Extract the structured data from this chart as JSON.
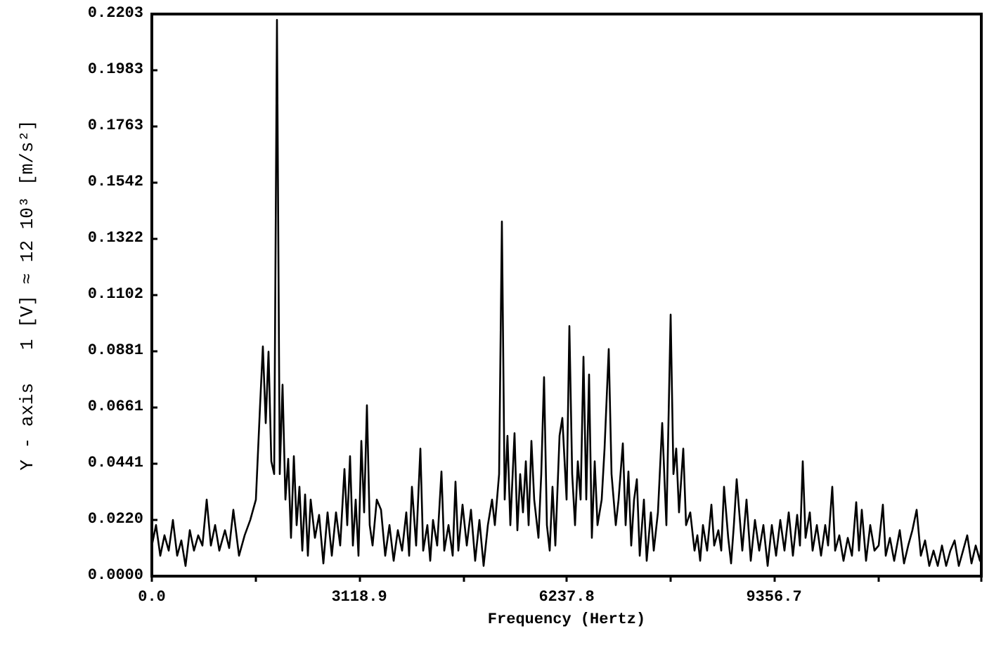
{
  "chart_data": {
    "type": "line",
    "xlabel": "Frequency (Hertz)",
    "ylabel": "Y - axis   1 [V] ≈ 12 10³ [m/s²]",
    "xlim": [
      0,
      12475.6
    ],
    "xticks": [
      {
        "value": 0,
        "label": "0.0"
      },
      {
        "value": 1559.45,
        "label": null
      },
      3118.9,
      {
        "value": 4678.35,
        "label": null
      },
      6237.8,
      {
        "value": 7797.25,
        "label": null
      },
      9356.7,
      {
        "value": 10916.15,
        "label": null
      },
      {
        "value": 12475.6,
        "label": null
      }
    ],
    "ylim": [
      0,
      0.2203
    ],
    "yticks": [
      {
        "value": 0,
        "label": "0.0000"
      },
      {
        "value": 0.022,
        "label": "0.0220"
      },
      0.0441,
      0.0661,
      0.0881,
      0.1102,
      0.1322,
      0.1542,
      0.1763,
      0.1983,
      0.2203
    ],
    "marker": "none",
    "line_style": "solid",
    "series": [
      {
        "color": "#000000",
        "x": [
          0,
          63,
          127,
          190,
          254,
          317,
          381,
          444,
          507,
          571,
          634,
          698,
          761,
          825,
          888,
          952,
          1015,
          1100,
          1163,
          1226,
          1311,
          1396,
          1480,
          1565,
          1628,
          1670,
          1713,
          1755,
          1797,
          1840,
          1882,
          1924,
          1966,
          2009,
          2051,
          2093,
          2136,
          2178,
          2220,
          2263,
          2305,
          2347,
          2389,
          2453,
          2516,
          2580,
          2643,
          2707,
          2770,
          2833,
          2897,
          2939,
          2981,
          3024,
          3066,
          3108,
          3151,
          3193,
          3235,
          3277,
          3320,
          3383,
          3447,
          3510,
          3574,
          3637,
          3700,
          3764,
          3827,
          3870,
          3912,
          3975,
          4039,
          4081,
          4144,
          4187,
          4229,
          4292,
          4356,
          4398,
          4462,
          4525,
          4567,
          4610,
          4673,
          4737,
          4800,
          4863,
          4927,
          4990,
          5054,
          5117,
          5159,
          5223,
          5265,
          5307,
          5349,
          5392,
          5455,
          5498,
          5540,
          5582,
          5625,
          5667,
          5709,
          5751,
          5815,
          5857,
          5899,
          5942,
          5984,
          6026,
          6069,
          6132,
          6174,
          6238,
          6280,
          6322,
          6365,
          6407,
          6449,
          6492,
          6534,
          6576,
          6618,
          6661,
          6703,
          6766,
          6809,
          6872,
          6914,
          6978,
          7020,
          7084,
          7126,
          7168,
          7210,
          7253,
          7295,
          7338,
          7401,
          7443,
          7506,
          7549,
          7612,
          7676,
          7739,
          7803,
          7845,
          7887,
          7929,
          7993,
          8035,
          8098,
          8162,
          8205,
          8247,
          8289,
          8352,
          8416,
          8458,
          8521,
          8564,
          8606,
          8669,
          8712,
          8754,
          8796,
          8881,
          8944,
          9008,
          9071,
          9135,
          9198,
          9262,
          9325,
          9389,
          9452,
          9515,
          9579,
          9642,
          9706,
          9748,
          9790,
          9832,
          9896,
          9938,
          10002,
          10065,
          10128,
          10171,
          10234,
          10277,
          10340,
          10403,
          10467,
          10530,
          10594,
          10636,
          10678,
          10742,
          10805,
          10869,
          10932,
          10995,
          11038,
          11101,
          11165,
          11249,
          11313,
          11376,
          11439,
          11503,
          11566,
          11630,
          11693,
          11757,
          11820,
          11884,
          11947,
          12010,
          12074,
          12137,
          12201,
          12264,
          12328,
          12391,
          12455,
          12475
        ],
        "values": [
          0.012,
          0.02,
          0.008,
          0.016,
          0.01,
          0.022,
          0.008,
          0.014,
          0.004,
          0.018,
          0.01,
          0.016,
          0.012,
          0.03,
          0.012,
          0.02,
          0.01,
          0.018,
          0.011,
          0.026,
          0.008,
          0.016,
          0.022,
          0.03,
          0.067,
          0.09,
          0.06,
          0.088,
          0.045,
          0.04,
          0.218,
          0.04,
          0.075,
          0.03,
          0.046,
          0.015,
          0.047,
          0.02,
          0.035,
          0.01,
          0.032,
          0.008,
          0.03,
          0.015,
          0.024,
          0.005,
          0.025,
          0.008,
          0.025,
          0.012,
          0.042,
          0.02,
          0.047,
          0.012,
          0.03,
          0.008,
          0.053,
          0.025,
          0.067,
          0.02,
          0.012,
          0.03,
          0.026,
          0.008,
          0.02,
          0.006,
          0.018,
          0.01,
          0.025,
          0.008,
          0.035,
          0.012,
          0.05,
          0.01,
          0.02,
          0.006,
          0.022,
          0.012,
          0.041,
          0.01,
          0.02,
          0.008,
          0.037,
          0.01,
          0.028,
          0.012,
          0.026,
          0.006,
          0.022,
          0.004,
          0.02,
          0.03,
          0.02,
          0.04,
          0.139,
          0.03,
          0.055,
          0.02,
          0.056,
          0.018,
          0.04,
          0.025,
          0.045,
          0.02,
          0.053,
          0.03,
          0.015,
          0.04,
          0.078,
          0.02,
          0.01,
          0.035,
          0.012,
          0.055,
          0.062,
          0.03,
          0.098,
          0.04,
          0.02,
          0.045,
          0.03,
          0.086,
          0.03,
          0.079,
          0.015,
          0.045,
          0.02,
          0.03,
          0.05,
          0.089,
          0.04,
          0.02,
          0.03,
          0.052,
          0.02,
          0.041,
          0.012,
          0.03,
          0.038,
          0.008,
          0.03,
          0.006,
          0.025,
          0.01,
          0.025,
          0.06,
          0.02,
          0.1025,
          0.04,
          0.05,
          0.025,
          0.05,
          0.02,
          0.025,
          0.01,
          0.016,
          0.006,
          0.02,
          0.01,
          0.028,
          0.012,
          0.018,
          0.01,
          0.035,
          0.015,
          0.005,
          0.02,
          0.038,
          0.01,
          0.03,
          0.006,
          0.022,
          0.01,
          0.02,
          0.004,
          0.02,
          0.008,
          0.022,
          0.01,
          0.025,
          0.008,
          0.024,
          0.012,
          0.045,
          0.015,
          0.025,
          0.01,
          0.02,
          0.008,
          0.02,
          0.012,
          0.035,
          0.01,
          0.016,
          0.006,
          0.015,
          0.008,
          0.029,
          0.01,
          0.026,
          0.006,
          0.02,
          0.01,
          0.012,
          0.028,
          0.008,
          0.015,
          0.006,
          0.018,
          0.005,
          0.012,
          0.018,
          0.026,
          0.008,
          0.014,
          0.004,
          0.01,
          0.004,
          0.012,
          0.004,
          0.01,
          0.014,
          0.004,
          0.01,
          0.016,
          0.005,
          0.012,
          0.006,
          0.012
        ]
      }
    ]
  }
}
